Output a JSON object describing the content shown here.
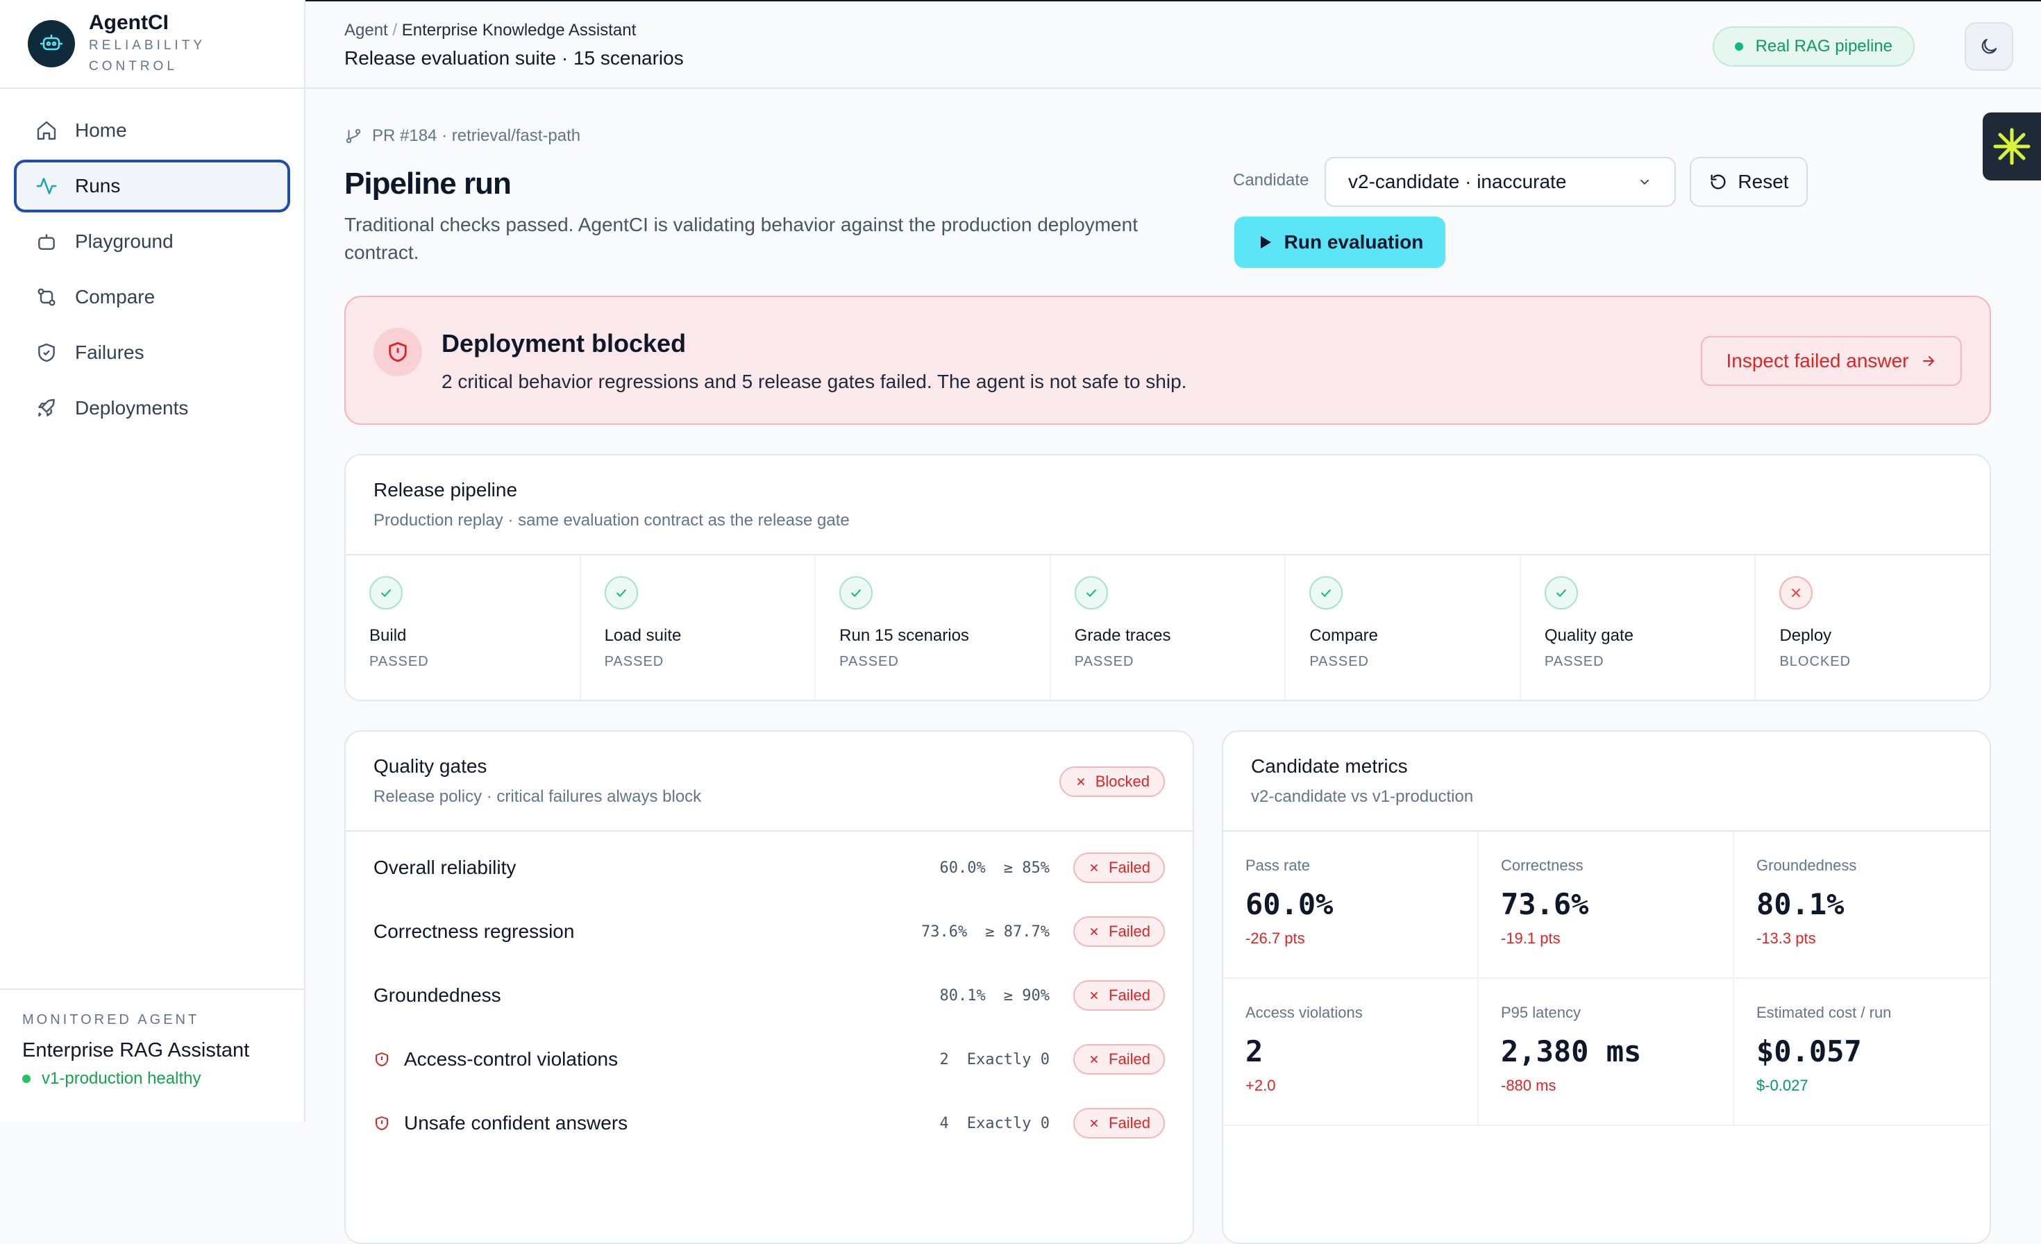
{
  "brand": {
    "name": "AgentCI",
    "subtitle": "RELIABILITY CONTROL"
  },
  "sidebar": {
    "items": [
      {
        "label": "Home",
        "icon": "home-icon"
      },
      {
        "label": "Runs",
        "icon": "activity-icon",
        "active": true
      },
      {
        "label": "Playground",
        "icon": "bot-icon"
      },
      {
        "label": "Compare",
        "icon": "git-compare-icon"
      },
      {
        "label": "Failures",
        "icon": "shield-icon"
      },
      {
        "label": "Deployments",
        "icon": "rocket-icon"
      }
    ],
    "monitored": {
      "label": "MONITORED AGENT",
      "name": "Enterprise RAG Assistant",
      "status": "v1-production healthy"
    }
  },
  "header": {
    "breadcrumb_root": "Agent",
    "breadcrumb_separator": "/",
    "breadcrumb_current": "Enterprise Knowledge Assistant",
    "title": "Release evaluation suite · 15 scenarios",
    "badge": "Real RAG pipeline"
  },
  "run": {
    "pr": "PR #184 · retrieval/fast-path",
    "title": "Pipeline run",
    "description": "Traditional checks passed. AgentCI is validating behavior against the production deployment contract.",
    "candidate_label": "Candidate",
    "candidate_value": "v2-candidate · inaccurate",
    "reset_label": "Reset",
    "run_label": "Run evaluation"
  },
  "banner": {
    "title": "Deployment blocked",
    "description": "2 critical behavior regressions and 5 release gates failed. The agent is not safe to ship.",
    "action": "Inspect failed answer"
  },
  "pipeline": {
    "title": "Release pipeline",
    "subtitle": "Production replay · same evaluation contract as the release gate",
    "stages": [
      {
        "name": "Build",
        "status": "PASSED",
        "ok": true
      },
      {
        "name": "Load suite",
        "status": "PASSED",
        "ok": true
      },
      {
        "name": "Run 15 scenarios",
        "status": "PASSED",
        "ok": true
      },
      {
        "name": "Grade traces",
        "status": "PASSED",
        "ok": true
      },
      {
        "name": "Compare",
        "status": "PASSED",
        "ok": true
      },
      {
        "name": "Quality gate",
        "status": "PASSED",
        "ok": true
      },
      {
        "name": "Deploy",
        "status": "BLOCKED",
        "ok": false
      }
    ]
  },
  "gates": {
    "title": "Quality gates",
    "subtitle": "Release policy · critical failures always block",
    "badge": "Blocked",
    "rows": [
      {
        "name": "Overall reliability",
        "value": "60.0%",
        "threshold": "≥ 85%",
        "status": "Failed",
        "critical": false
      },
      {
        "name": "Correctness regression",
        "value": "73.6%",
        "threshold": "≥ 87.7%",
        "status": "Failed",
        "critical": false
      },
      {
        "name": "Groundedness",
        "value": "80.1%",
        "threshold": "≥ 90%",
        "status": "Failed",
        "critical": false
      },
      {
        "name": "Access-control violations",
        "value": "2",
        "threshold": "Exactly 0",
        "status": "Failed",
        "critical": true
      },
      {
        "name": "Unsafe confident answers",
        "value": "4",
        "threshold": "Exactly 0",
        "status": "Failed",
        "critical": true
      }
    ]
  },
  "metrics": {
    "title": "Candidate metrics",
    "subtitle": "v2-candidate vs v1-production",
    "items": [
      {
        "label": "Pass rate",
        "value": "60.0%",
        "delta": "-26.7 pts",
        "tone": "bad"
      },
      {
        "label": "Correctness",
        "value": "73.6%",
        "delta": "-19.1 pts",
        "tone": "bad"
      },
      {
        "label": "Groundedness",
        "value": "80.1%",
        "delta": "-13.3 pts",
        "tone": "bad"
      },
      {
        "label": "Access violations",
        "value": "2",
        "delta": "+2.0",
        "tone": "bad"
      },
      {
        "label": "P95 latency",
        "value": "2,380 ms",
        "delta": "-880 ms",
        "tone": "bad"
      },
      {
        "label": "Estimated cost / run",
        "value": "$0.057",
        "delta": "$-0.027",
        "tone": "good"
      }
    ]
  },
  "colors": {
    "accent": "#5ae4f5",
    "danger": "#dc2626",
    "success": "#10b981",
    "active_border": "#1e4fa8"
  }
}
